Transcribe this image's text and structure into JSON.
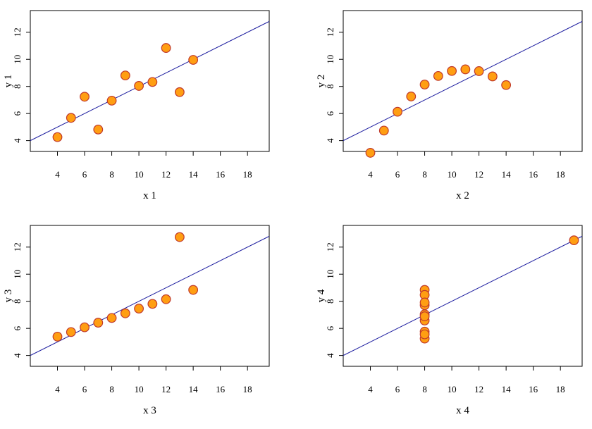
{
  "colors": {
    "point_fill": "#FF9E12",
    "point_stroke": "#C0392B",
    "line": "#1F1FA0",
    "frame": "#000000"
  },
  "chart_data": [
    {
      "type": "scatter",
      "xlabel": "x 1",
      "ylabel": "y 1",
      "xticks": [
        "4",
        "6",
        "8",
        "10",
        "12",
        "14",
        "16",
        "18"
      ],
      "yticks": [
        "4",
        "6",
        "8",
        "10",
        "12"
      ],
      "xlim": [
        2.0,
        19.6
      ],
      "ylim": [
        3.2,
        13.6
      ],
      "grid": false,
      "points": [
        [
          10,
          8.04
        ],
        [
          8,
          6.95
        ],
        [
          13,
          7.58
        ],
        [
          9,
          8.81
        ],
        [
          11,
          8.33
        ],
        [
          14,
          9.96
        ],
        [
          6,
          7.24
        ],
        [
          4,
          4.26
        ],
        [
          12,
          10.84
        ],
        [
          7,
          4.82
        ],
        [
          5,
          5.68
        ]
      ],
      "fit_line": {
        "intercept": 3.0,
        "slope": 0.5
      }
    },
    {
      "type": "scatter",
      "xlabel": "x 2",
      "ylabel": "y 2",
      "xticks": [
        "4",
        "6",
        "8",
        "10",
        "12",
        "14",
        "16",
        "18"
      ],
      "yticks": [
        "4",
        "6",
        "8",
        "10",
        "12"
      ],
      "xlim": [
        2.0,
        19.6
      ],
      "ylim": [
        3.2,
        13.6
      ],
      "grid": false,
      "points": [
        [
          10,
          9.14
        ],
        [
          8,
          8.14
        ],
        [
          13,
          8.74
        ],
        [
          9,
          8.77
        ],
        [
          11,
          9.26
        ],
        [
          14,
          8.1
        ],
        [
          6,
          6.13
        ],
        [
          4,
          3.1
        ],
        [
          12,
          9.13
        ],
        [
          7,
          7.26
        ],
        [
          5,
          4.74
        ]
      ],
      "fit_line": {
        "intercept": 3.0,
        "slope": 0.5
      }
    },
    {
      "type": "scatter",
      "xlabel": "x 3",
      "ylabel": "y 3",
      "xticks": [
        "4",
        "6",
        "8",
        "10",
        "12",
        "14",
        "16",
        "18"
      ],
      "yticks": [
        "4",
        "6",
        "8",
        "10",
        "12"
      ],
      "xlim": [
        2.0,
        19.6
      ],
      "ylim": [
        3.2,
        13.6
      ],
      "grid": false,
      "points": [
        [
          10,
          7.46
        ],
        [
          8,
          6.77
        ],
        [
          13,
          12.74
        ],
        [
          9,
          7.11
        ],
        [
          11,
          7.81
        ],
        [
          14,
          8.84
        ],
        [
          6,
          6.08
        ],
        [
          4,
          5.39
        ],
        [
          12,
          8.15
        ],
        [
          7,
          6.42
        ],
        [
          5,
          5.73
        ]
      ],
      "fit_line": {
        "intercept": 3.0,
        "slope": 0.5
      }
    },
    {
      "type": "scatter",
      "xlabel": "x 4",
      "ylabel": "y 4",
      "xticks": [
        "4",
        "6",
        "8",
        "10",
        "12",
        "14",
        "16",
        "18"
      ],
      "yticks": [
        "4",
        "6",
        "8",
        "10",
        "12"
      ],
      "xlim": [
        2.0,
        19.6
      ],
      "ylim": [
        3.2,
        13.6
      ],
      "grid": false,
      "points": [
        [
          8,
          6.58
        ],
        [
          8,
          5.76
        ],
        [
          8,
          7.71
        ],
        [
          8,
          8.84
        ],
        [
          8,
          8.47
        ],
        [
          8,
          7.04
        ],
        [
          8,
          5.25
        ],
        [
          19,
          12.5
        ],
        [
          8,
          5.56
        ],
        [
          8,
          7.91
        ],
        [
          8,
          6.89
        ]
      ],
      "fit_line": {
        "intercept": 3.0,
        "slope": 0.5
      }
    }
  ]
}
